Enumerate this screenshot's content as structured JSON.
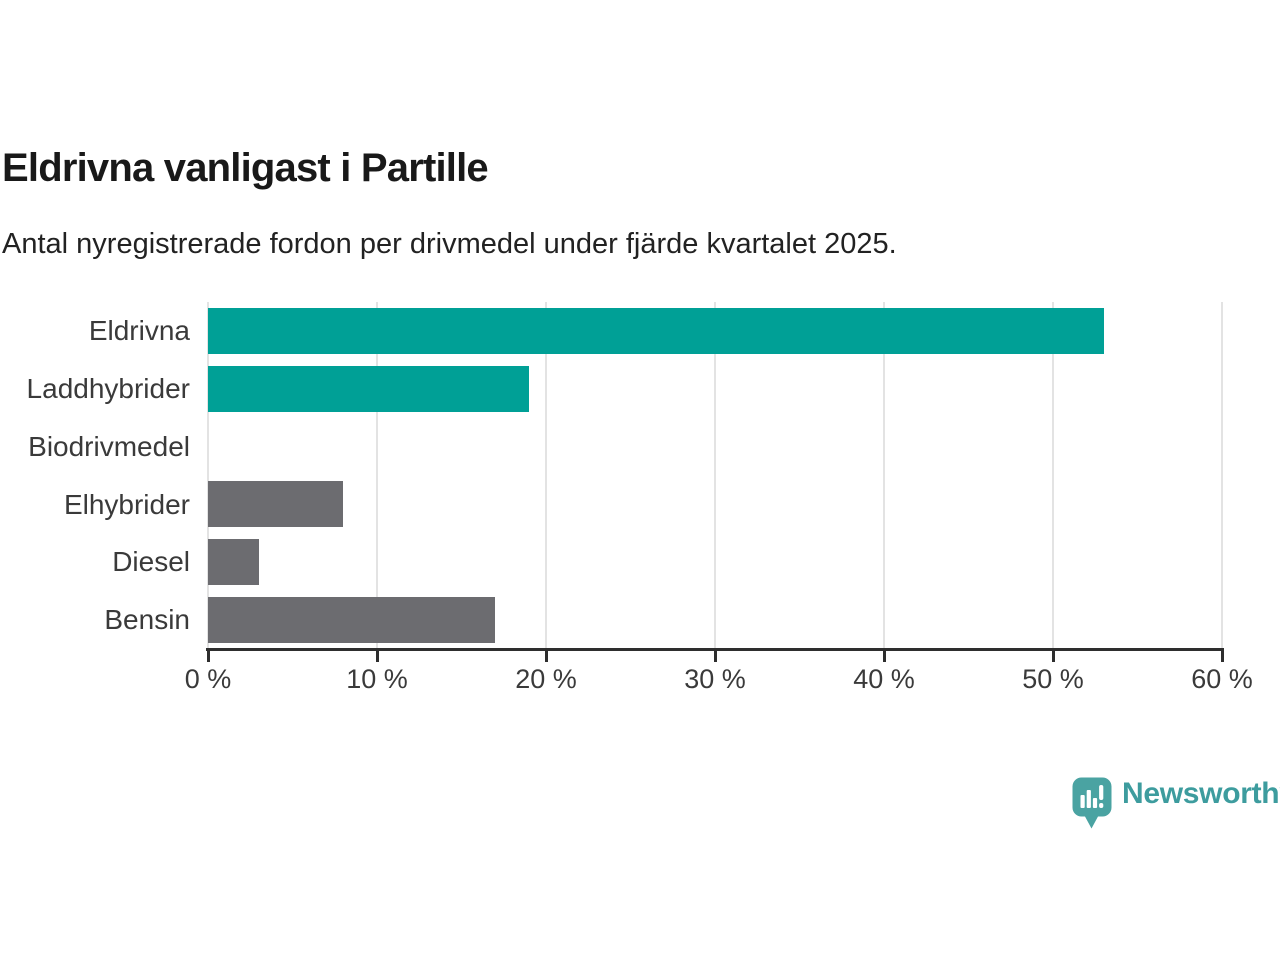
{
  "chart_data": {
    "type": "bar",
    "orientation": "horizontal",
    "title": "Eldrivna vanligast i Partille",
    "subtitle": "Antal nyregistrerade fordon per drivmedel under fjärde kvartalet 2025.",
    "categories": [
      "Eldrivna",
      "Laddhybrider",
      "Biodrivmedel",
      "Elhybrider",
      "Diesel",
      "Bensin"
    ],
    "values": [
      53,
      19,
      0,
      8,
      3,
      17
    ],
    "unit": "%",
    "bar_colors": [
      "#00a096",
      "#00a096",
      "#6c6c70",
      "#6c6c70",
      "#6c6c70",
      "#6c6c70"
    ],
    "xlim": [
      0,
      60
    ],
    "x_ticks": [
      0,
      10,
      20,
      30,
      40,
      50,
      60
    ],
    "x_tick_labels": [
      "0 %",
      "10 %",
      "20 %",
      "30 %",
      "40 %",
      "50 %",
      "60 %"
    ],
    "grid": true,
    "legend": null,
    "xlabel": "",
    "ylabel": ""
  },
  "footer": {
    "brand": "Newsworthy"
  },
  "colors": {
    "bar_teal": "#00a096",
    "bar_gray": "#6c6c70",
    "logo_icon": "#4aa3a2",
    "logo_text": "#3d9c9e",
    "gridline": "#e3e3e3",
    "axis": "#2e2e2e"
  }
}
